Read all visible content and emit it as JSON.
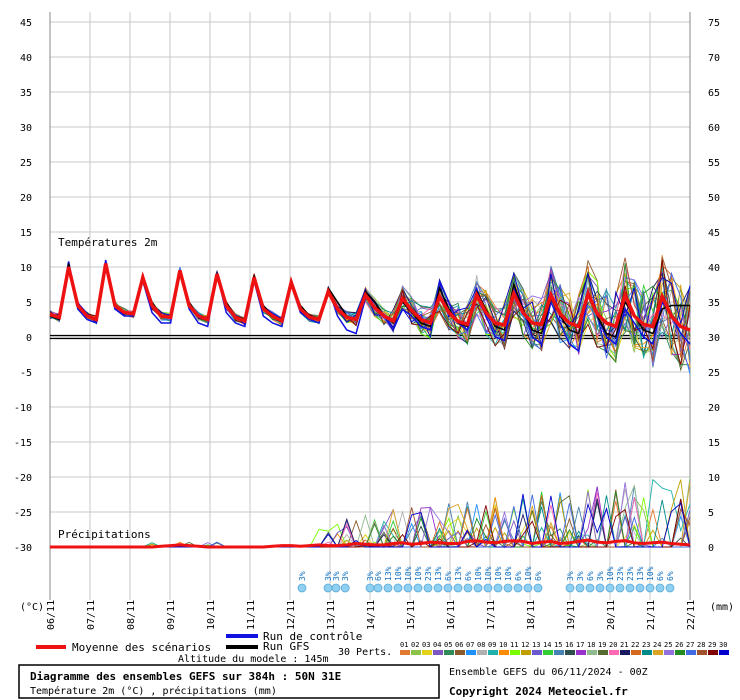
{
  "chart_data": {
    "type": "line",
    "labels": {
      "temp": "Températures 2m",
      "precip": "Précipitations",
      "unit_left": "(°C)",
      "unit_right": "(mm)"
    },
    "left_axis": {
      "min": -30,
      "max": 45,
      "ticks": [
        "45",
        "40",
        "35",
        "30",
        "25",
        "20",
        "15",
        "10",
        "5",
        "0",
        "-5",
        "-10",
        "-15",
        "-20",
        "-25",
        "-30"
      ]
    },
    "right_axis": {
      "min": 0,
      "max": 75,
      "ticks": [
        "75",
        "70",
        "65",
        "60",
        "55",
        "50",
        "45",
        "40",
        "35",
        "30",
        "25",
        "20",
        "15",
        "10",
        "5",
        "0"
      ]
    },
    "dates": [
      "06/11",
      "07/11",
      "08/11",
      "09/11",
      "10/11",
      "11/11",
      "12/11",
      "13/11",
      "14/11",
      "15/11",
      "16/11",
      "17/11",
      "18/11",
      "19/11",
      "20/11",
      "21/11",
      "22/11"
    ],
    "snow_labels": [
      {
        "t": 6.3,
        "v": "3%"
      },
      {
        "t": 6.95,
        "v": "3%"
      },
      {
        "t": 7.15,
        "v": "3%"
      },
      {
        "t": 7.38,
        "v": "3%"
      },
      {
        "t": 8.0,
        "v": "3%"
      },
      {
        "t": 8.2,
        "v": "6%"
      },
      {
        "t": 8.45,
        "v": "13%"
      },
      {
        "t": 8.7,
        "v": "10%"
      },
      {
        "t": 8.95,
        "v": "10%"
      },
      {
        "t": 9.2,
        "v": "10%"
      },
      {
        "t": 9.45,
        "v": "23%"
      },
      {
        "t": 9.7,
        "v": "13%"
      },
      {
        "t": 9.95,
        "v": "6%"
      },
      {
        "t": 10.2,
        "v": "13%"
      },
      {
        "t": 10.45,
        "v": "6%"
      },
      {
        "t": 10.7,
        "v": "10%"
      },
      {
        "t": 10.95,
        "v": "10%"
      },
      {
        "t": 11.2,
        "v": "10%"
      },
      {
        "t": 11.45,
        "v": "10%"
      },
      {
        "t": 11.7,
        "v": "6%"
      },
      {
        "t": 11.95,
        "v": "10%"
      },
      {
        "t": 12.2,
        "v": "6%"
      },
      {
        "t": 13.0,
        "v": "3%"
      },
      {
        "t": 13.25,
        "v": "3%"
      },
      {
        "t": 13.5,
        "v": "6%"
      },
      {
        "t": 13.75,
        "v": "3%"
      },
      {
        "t": 14.0,
        "v": "10%"
      },
      {
        "t": 14.25,
        "v": "23%"
      },
      {
        "t": 14.5,
        "v": "23%"
      },
      {
        "t": 14.75,
        "v": "13%"
      },
      {
        "t": 15.0,
        "v": "10%"
      },
      {
        "t": 15.25,
        "v": "6%"
      },
      {
        "t": 15.5,
        "v": "6%"
      }
    ],
    "mean_temp": [
      3.2,
      2.8,
      10.0,
      4.5,
      3.0,
      2.5,
      10.5,
      4.5,
      3.5,
      3.3,
      8.5,
      4.5,
      3.0,
      2.8,
      9.5,
      4.5,
      3.0,
      2.5,
      9.0,
      4.5,
      2.8,
      2.3,
      8.5,
      4.0,
      3.0,
      2.3,
      7.8,
      4.0,
      2.8,
      2.5,
      6.5,
      4.0,
      2.8,
      2.5,
      6.0,
      4.2,
      3.0,
      2.3,
      5.5,
      3.8,
      2.5,
      2.0,
      5.8,
      3.5,
      2.2,
      1.8,
      6.0,
      3.5,
      2.0,
      1.7,
      6.2,
      3.5,
      2.0,
      1.8,
      6.0,
      3.3,
      2.0,
      1.5,
      6.2,
      3.3,
      2.0,
      1.5,
      6.0,
      3.0,
      1.8,
      1.5,
      5.8,
      3.0,
      1.5,
      1.0
    ],
    "mean_precip": [
      0,
      0,
      0,
      0,
      0,
      0,
      0,
      0,
      0,
      0,
      0,
      0,
      0.1,
      0.2,
      0.3,
      0.2,
      0.1,
      0,
      0,
      0,
      0,
      0,
      0,
      0,
      0.1,
      0.2,
      0.2,
      0.1,
      0.2,
      0.3,
      0.2,
      0.2,
      0.3,
      0.5,
      0.4,
      0.3,
      0.3,
      0.5,
      0.6,
      0.4,
      0.5,
      0.7,
      0.6,
      0.5,
      0.5,
      0.8,
      0.9,
      0.7,
      0.6,
      0.8,
      0.9,
      0.8,
      0.5,
      0.7,
      0.8,
      0.5,
      0.6,
      0.8,
      1.0,
      0.7,
      0.6,
      0.8,
      0.9,
      0.6,
      0.5,
      0.6,
      0.7,
      0.5,
      0.4,
      0.3
    ],
    "control_temp": [
      3.0,
      2.5,
      10.8,
      4.0,
      2.5,
      2.0,
      11.0,
      4.0,
      3.0,
      3.0,
      8.0,
      3.5,
      2.0,
      2.0,
      9.5,
      4.0,
      2.0,
      1.5,
      9.0,
      3.5,
      2.0,
      1.5,
      8.0,
      3.0,
      2.0,
      1.5,
      7.5,
      3.5,
      2.5,
      2.0,
      7.0,
      3.0,
      1.0,
      0.5,
      5.5,
      5.0,
      3.0,
      1.0,
      4.0,
      3.0,
      1.5,
      1.0,
      8.0,
      5.0,
      2.0,
      1.0,
      6.0,
      3.0,
      0.0,
      -0.5,
      7.0,
      4.0,
      0.0,
      -1.0,
      5.0,
      2.0,
      -1.0,
      -2.0,
      6.0,
      3.0,
      0.0,
      -1.0,
      4.0,
      2.0,
      0.0,
      -1.0,
      5.0,
      3.0,
      0.5,
      -1.0
    ],
    "gfs_temp": [
      3.0,
      2.5,
      10.5,
      4.5,
      3.0,
      2.5,
      10.5,
      4.5,
      3.5,
      3.5,
      8.5,
      5.0,
      3.0,
      3.0,
      9.5,
      5.0,
      3.0,
      2.5,
      9.0,
      5.0,
      3.0,
      2.5,
      8.5,
      4.5,
      3.0,
      2.5,
      8.0,
      4.5,
      3.0,
      2.5,
      7.0,
      5.0,
      3.0,
      2.5,
      6.5,
      5.0,
      3.0,
      2.0,
      5.0,
      3.5,
      2.0,
      1.5,
      7.0,
      4.0,
      2.0,
      1.5,
      6.5,
      4.0,
      1.5,
      1.0,
      7.5,
      4.0,
      1.0,
      0.5,
      5.5,
      3.0,
      1.0,
      0.5,
      6.5,
      3.0,
      0.5,
      0.0,
      5.0,
      3.0,
      1.0,
      0.5,
      4.0,
      4.5,
      4.5,
      4.5
    ],
    "legend": {
      "mean": "Moyenne des scénarios",
      "control": "Run de contrôle",
      "gfs": "Run GFS",
      "perts": "30 Perts.",
      "altitude": "Altitude du modele : 145m",
      "pert_numbers": [
        "01",
        "02",
        "03",
        "04",
        "05",
        "06",
        "07",
        "08",
        "09",
        "10",
        "11",
        "12",
        "13",
        "14",
        "15",
        "16",
        "17",
        "18",
        "19",
        "20",
        "21",
        "22",
        "23",
        "24",
        "25",
        "26",
        "27",
        "28",
        "29",
        "30"
      ],
      "pert_colors": [
        "#e07a30",
        "#8bc34a",
        "#e3d21a",
        "#7e57c2",
        "#2e8b57",
        "#8b5a2b",
        "#1e90ff",
        "#b0b0b0",
        "#20b2aa",
        "#ff8c00",
        "#7cfc00",
        "#c0a000",
        "#6a5acd",
        "#32cd32",
        "#4682b4",
        "#2f4f4f",
        "#9932cc",
        "#8fbc8f",
        "#556b2f",
        "#ff69b4",
        "#1a1a60",
        "#d2691e",
        "#008b8b",
        "#daa520",
        "#9370db",
        "#228b22",
        "#4169e1",
        "#a0522d",
        "#800000",
        "#0000cd"
      ]
    },
    "footer": {
      "title": "Diagramme des ensembles GEFS sur 384h : 50N 31E",
      "subtitle": "Température 2m (°C) , précipitations (mm)",
      "ensemble": "Ensemble GEFS du 06/11/2024 - 00Z",
      "copyright": "Copyright 2024 Meteociel.fr"
    }
  }
}
